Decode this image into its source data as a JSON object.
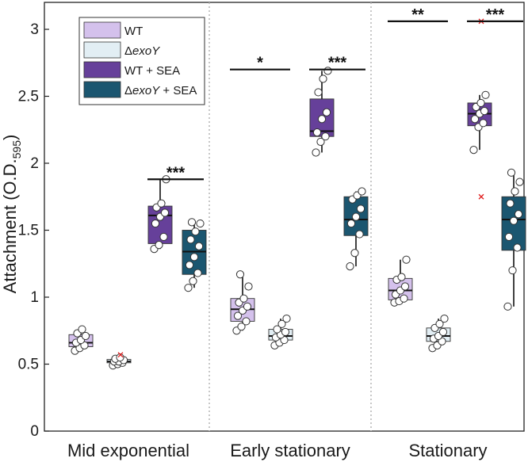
{
  "chart_data": {
    "type": "box",
    "ylabel": "Attachment (O.D.",
    "ylabel_sub": "595",
    "ylabel_close": ")",
    "ylim": [
      0,
      3.2
    ],
    "yticks": [
      0,
      0.5,
      1,
      1.5,
      2,
      2.5,
      3
    ],
    "ytick_labels": [
      "0",
      "0.5",
      "1",
      "1.5",
      "2",
      "2.5",
      "3"
    ],
    "groups": [
      "Mid exponential",
      "Early stationary",
      "Stationary"
    ],
    "legend": [
      {
        "label": "WT",
        "italic": "",
        "suffix": "",
        "color": "#d4c1ec"
      },
      {
        "label": "Δ",
        "italic": "exoY",
        "suffix": "",
        "color": "#e2eef4"
      },
      {
        "label": "WT + SEA",
        "italic": "",
        "suffix": "",
        "color": "#66409a"
      },
      {
        "label": "Δ",
        "italic": "exoY",
        "suffix": " + SEA",
        "color": "#1b5670"
      }
    ],
    "series": [
      {
        "name": "WT",
        "color": "#d4c1ec",
        "boxes": [
          {
            "min": 0.6,
            "q1": 0.63,
            "median": 0.66,
            "q3": 0.72,
            "max": 0.76,
            "points": [
              0.6,
              0.62,
              0.64,
              0.66,
              0.68,
              0.71,
              0.73,
              0.76
            ],
            "outliers": []
          },
          {
            "min": 0.75,
            "q1": 0.82,
            "median": 0.91,
            "q3": 0.99,
            "max": 1.17,
            "points": [
              0.75,
              0.78,
              0.82,
              0.86,
              0.9,
              0.93,
              0.96,
              0.99,
              1.08,
              1.17
            ],
            "outliers": []
          },
          {
            "min": 0.96,
            "q1": 0.98,
            "median": 1.05,
            "q3": 1.14,
            "max": 1.28,
            "points": [
              0.96,
              0.97,
              0.99,
              1.02,
              1.05,
              1.08,
              1.13,
              1.15,
              1.28
            ],
            "outliers": []
          }
        ]
      },
      {
        "name": "ΔexoY",
        "color": "#e2eef4",
        "boxes": [
          {
            "min": 0.49,
            "q1": 0.51,
            "median": 0.52,
            "q3": 0.535,
            "max": 0.55,
            "points": [
              0.49,
              0.5,
              0.51,
              0.52,
              0.52,
              0.53,
              0.54,
              0.55
            ],
            "outliers": [
              0.57
            ]
          },
          {
            "min": 0.64,
            "q1": 0.68,
            "median": 0.71,
            "q3": 0.76,
            "max": 0.84,
            "points": [
              0.64,
              0.66,
              0.68,
              0.7,
              0.72,
              0.74,
              0.76,
              0.8,
              0.84
            ],
            "outliers": []
          },
          {
            "min": 0.62,
            "q1": 0.67,
            "median": 0.71,
            "q3": 0.77,
            "max": 0.84,
            "points": [
              0.62,
              0.64,
              0.67,
              0.69,
              0.71,
              0.74,
              0.77,
              0.8,
              0.84
            ],
            "outliers": []
          }
        ]
      },
      {
        "name": "WT + SEA",
        "color": "#66409a",
        "boxes": [
          {
            "min": 1.36,
            "q1": 1.4,
            "median": 1.61,
            "q3": 1.68,
            "max": 1.88,
            "points": [
              1.36,
              1.39,
              1.45,
              1.55,
              1.6,
              1.63,
              1.67,
              1.7,
              1.88
            ],
            "outliers": []
          },
          {
            "min": 2.08,
            "q1": 2.2,
            "median": 2.24,
            "q3": 2.48,
            "max": 2.69,
            "points": [
              2.08,
              2.16,
              2.2,
              2.23,
              2.33,
              2.38,
              2.53,
              2.63,
              2.69
            ],
            "outliers": []
          },
          {
            "min": 2.1,
            "q1": 2.28,
            "median": 2.37,
            "q3": 2.45,
            "max": 2.51,
            "points": [
              2.1,
              2.27,
              2.3,
              2.33,
              2.37,
              2.39,
              2.42,
              2.45,
              2.51
            ],
            "outliers": [
              1.75,
              3.06
            ]
          }
        ]
      },
      {
        "name": "ΔexoY + SEA",
        "color": "#1b5670",
        "boxes": [
          {
            "min": 1.07,
            "q1": 1.17,
            "median": 1.34,
            "q3": 1.5,
            "max": 1.56,
            "points": [
              1.07,
              1.12,
              1.18,
              1.24,
              1.3,
              1.38,
              1.43,
              1.49,
              1.55,
              1.56
            ],
            "outliers": []
          },
          {
            "min": 1.23,
            "q1": 1.46,
            "median": 1.58,
            "q3": 1.75,
            "max": 1.79,
            "points": [
              1.23,
              1.33,
              1.47,
              1.55,
              1.6,
              1.66,
              1.73,
              1.76,
              1.79
            ],
            "outliers": []
          },
          {
            "min": 0.93,
            "q1": 1.35,
            "median": 1.58,
            "q3": 1.75,
            "max": 1.93,
            "points": [
              0.93,
              1.2,
              1.37,
              1.45,
              1.57,
              1.62,
              1.7,
              1.79,
              1.86,
              1.93
            ],
            "outliers": []
          }
        ]
      }
    ],
    "significance": [
      {
        "group": 0,
        "from": 2,
        "to": 3,
        "y": 1.88,
        "label": "***"
      },
      {
        "group": 1,
        "from": 0,
        "to": 1,
        "y": 2.7,
        "label": "*"
      },
      {
        "group": 1,
        "from": 2,
        "to": 3,
        "y": 2.7,
        "label": "***"
      },
      {
        "group": 2,
        "from": 0,
        "to": 1,
        "y": 3.06,
        "label": "**"
      },
      {
        "group": 2,
        "from": 2,
        "to": 3,
        "y": 3.06,
        "label": "***"
      }
    ]
  }
}
